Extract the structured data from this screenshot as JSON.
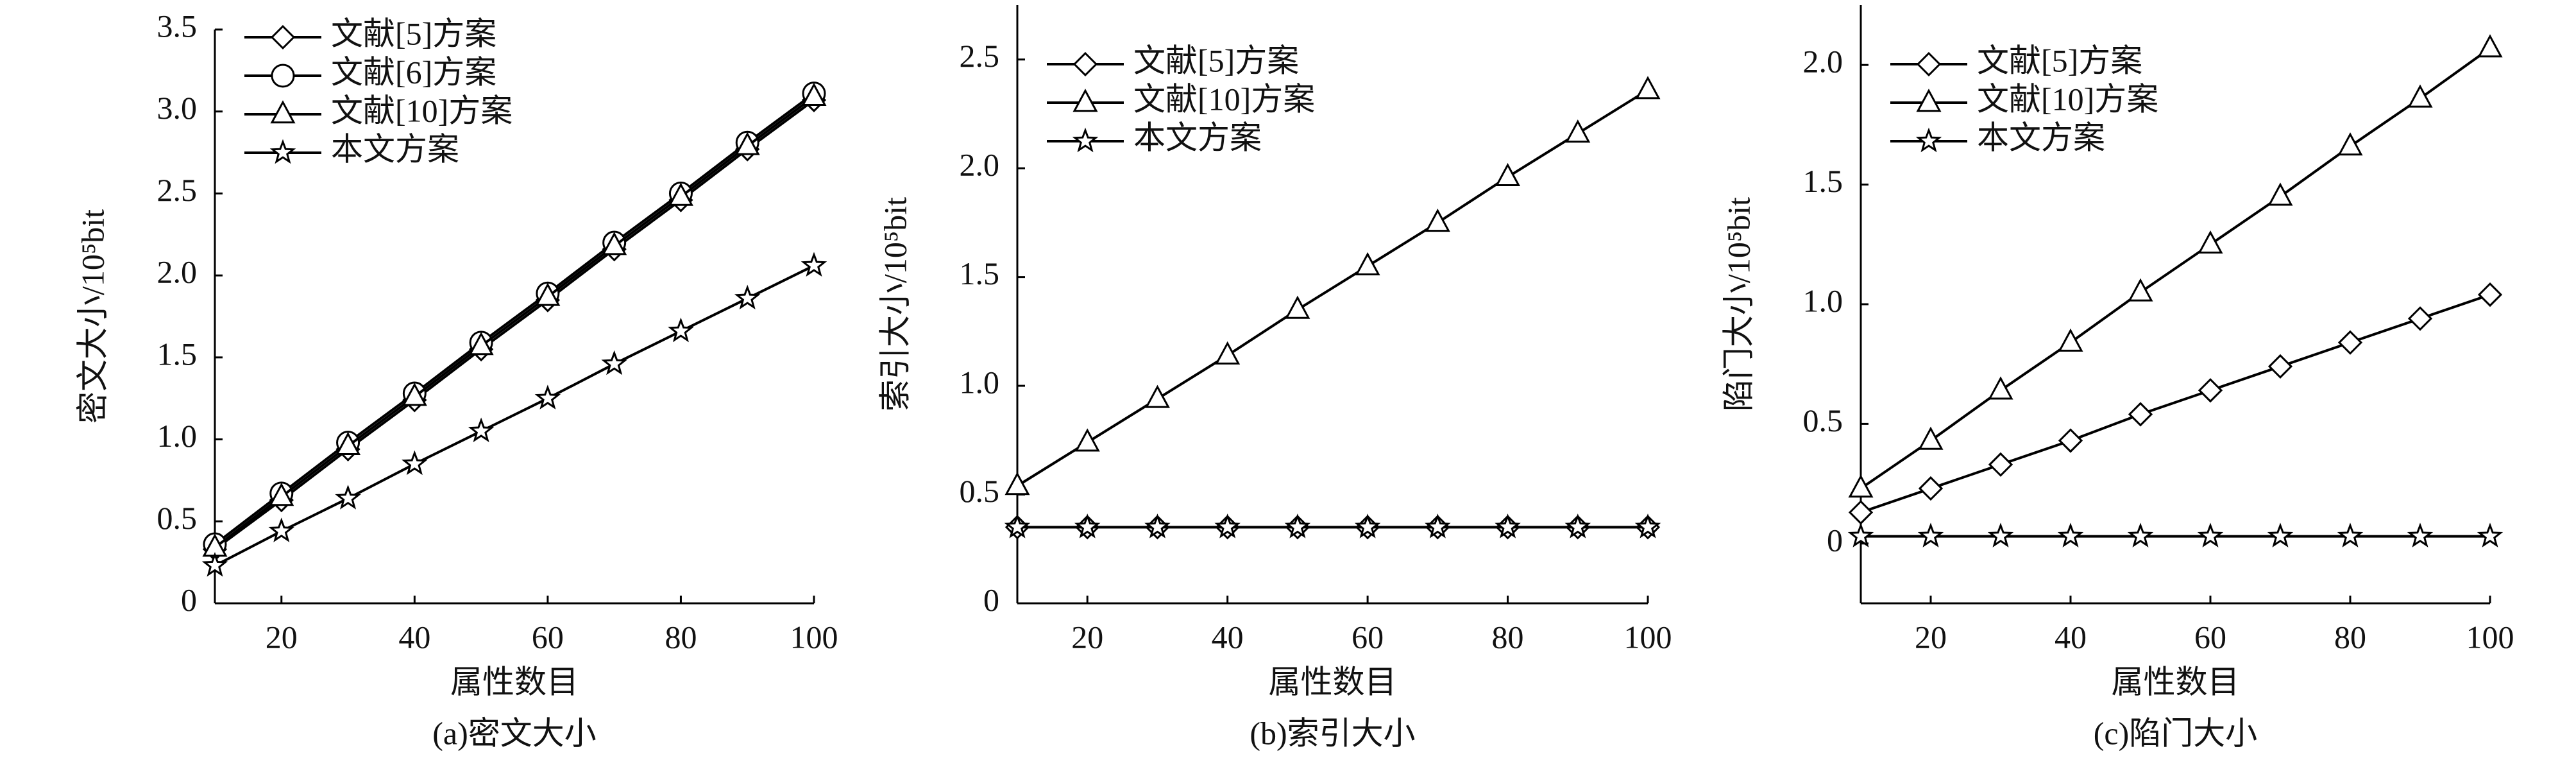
{
  "chart_data": [
    {
      "type": "line",
      "caption": "(a)密文大小",
      "xlabel": "属性数目",
      "ylabel": "密文大小/10⁵bit",
      "x": [
        10,
        20,
        30,
        40,
        50,
        60,
        70,
        80,
        90,
        100
      ],
      "xlim": [
        10,
        100
      ],
      "xticks": [
        20,
        40,
        60,
        80,
        100
      ],
      "ylim": [
        0,
        3.5
      ],
      "yticks": [
        0,
        0.5,
        {
          "value": 1,
          "label": "1.0"
        },
        1.5,
        {
          "value": 2,
          "label": "2.0"
        },
        2.5,
        {
          "value": 3,
          "label": "3.0"
        },
        3.5
      ],
      "series": [
        {
          "name": "文献[5]方案",
          "color": "#000000",
          "marker": "diamond",
          "values": [
            0.33,
            0.63,
            0.94,
            1.24,
            1.55,
            1.85,
            2.16,
            2.46,
            2.77,
            3.07
          ]
        },
        {
          "name": "文献[6]方案",
          "color": "#000000",
          "marker": "circle",
          "values": [
            0.36,
            0.67,
            0.98,
            1.28,
            1.59,
            1.89,
            2.2,
            2.5,
            2.81,
            3.11
          ]
        },
        {
          "name": "文献[10]方案",
          "color": "#000000",
          "marker": "triangle",
          "values": [
            0.34,
            0.65,
            0.96,
            1.26,
            1.57,
            1.87,
            2.18,
            2.48,
            2.79,
            3.09
          ]
        },
        {
          "name": "本文方案",
          "color": "#000000",
          "marker": "star",
          "values": [
            0.23,
            0.44,
            0.64,
            0.85,
            1.05,
            1.25,
            1.46,
            1.66,
            1.86,
            2.06
          ]
        }
      ]
    },
    {
      "type": "line",
      "caption": "(b)索引大小",
      "xlabel": "属性数目",
      "ylabel": "索引大小/10⁵bit",
      "x": [
        10,
        20,
        30,
        40,
        50,
        60,
        70,
        80,
        90,
        100
      ],
      "xlim": [
        10,
        100
      ],
      "xticks": [
        20,
        40,
        60,
        80,
        100
      ],
      "ylim": [
        0,
        2.75
      ],
      "yticks": [
        0,
        0.5,
        {
          "value": 1,
          "label": "1.0"
        },
        1.5,
        {
          "value": 2,
          "label": "2.0"
        },
        2.5
      ],
      "series": [
        {
          "name": "文献[5]方案",
          "color": "#000000",
          "marker": "diamond",
          "values": [
            0.35,
            0.35,
            0.35,
            0.35,
            0.35,
            0.35,
            0.35,
            0.35,
            0.35,
            0.35
          ]
        },
        {
          "name": "文献[10]方案",
          "color": "#000000",
          "marker": "triangle",
          "values": [
            0.54,
            0.74,
            0.94,
            1.14,
            1.35,
            1.55,
            1.75,
            1.96,
            2.16,
            2.36
          ]
        },
        {
          "name": "本文方案",
          "color": "#000000",
          "marker": "star",
          "values": [
            0.35,
            0.35,
            0.35,
            0.35,
            0.35,
            0.35,
            0.35,
            0.35,
            0.35,
            0.35
          ]
        }
      ]
    },
    {
      "type": "line",
      "caption": "(c)陷门大小",
      "xlabel": "属性数目",
      "ylabel": "陷门大小/10⁵bit",
      "x": [
        10,
        20,
        30,
        40,
        50,
        60,
        70,
        80,
        90,
        100
      ],
      "xlim": [
        10,
        100
      ],
      "xticks": [
        20,
        40,
        60,
        80,
        100
      ],
      "ylim": [
        -0.25,
        2.25
      ],
      "yticks": [
        0,
        0.5,
        {
          "value": 1,
          "label": "1.0"
        },
        1.5,
        {
          "value": 2,
          "label": "2.0"
        }
      ],
      "series": [
        {
          "name": "文献[5]方案",
          "color": "#000000",
          "marker": "diamond",
          "values": [
            0.13,
            0.23,
            0.33,
            0.43,
            0.54,
            0.64,
            0.74,
            0.84,
            0.94,
            1.04
          ]
        },
        {
          "name": "文献[10]方案",
          "color": "#000000",
          "marker": "triangle",
          "values": [
            0.23,
            0.43,
            0.64,
            0.84,
            1.05,
            1.25,
            1.45,
            1.66,
            1.86,
            2.07
          ]
        },
        {
          "name": "本文方案",
          "color": "#000000",
          "marker": "star",
          "values": [
            0.03,
            0.03,
            0.03,
            0.03,
            0.03,
            0.03,
            0.03,
            0.03,
            0.03,
            0.03
          ]
        }
      ]
    }
  ]
}
